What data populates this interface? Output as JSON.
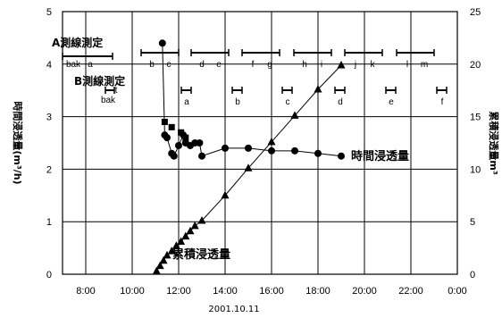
{
  "chart_data": {
    "type": "line",
    "xlabel": "2001.10.11",
    "ylabel_left": "時間浸透量(m³/h)",
    "ylabel_right": "累積浸透量m³",
    "x_tick_labels": [
      "8:00",
      "10:00",
      "12:00",
      "14:00",
      "16:00",
      "18:00",
      "20:00",
      "22:00",
      "0:00"
    ],
    "xlim_hours": [
      7,
      24
    ],
    "ylim_left": [
      0,
      5
    ],
    "ylim_right": [
      0,
      25
    ],
    "y_left_ticks": [
      "0",
      "1",
      "2",
      "3",
      "4",
      "5"
    ],
    "y_right_ticks": [
      "0",
      "5",
      "10",
      "15",
      "20",
      "25"
    ],
    "grid": true,
    "series": [
      {
        "name": "時間浸透量",
        "axis": "left",
        "marker": "circle",
        "x": [
          11.3,
          11.4,
          11.5,
          11.7,
          11.8,
          12.0,
          12.2,
          12.3,
          12.5,
          12.7,
          12.9,
          13.0,
          14.0,
          15.0,
          16.0,
          17.0,
          18.0,
          19.0
        ],
        "y": [
          4.4,
          2.65,
          2.6,
          2.3,
          2.25,
          2.45,
          2.65,
          2.5,
          2.45,
          2.5,
          2.5,
          2.25,
          2.4,
          2.4,
          2.35,
          2.35,
          2.3,
          2.25
        ]
      },
      {
        "name": "時間浸透量 (B)",
        "axis": "left",
        "marker": "square",
        "x": [
          11.4,
          11.7,
          12.1,
          12.3
        ],
        "y": [
          2.9,
          2.8,
          2.7,
          2.6
        ]
      },
      {
        "name": "累積浸透量",
        "axis": "right",
        "marker": "triangle",
        "x": [
          11.05,
          11.2,
          11.35,
          11.5,
          11.7,
          11.9,
          12.1,
          12.3,
          12.5,
          12.7,
          13.0,
          14.0,
          15.0,
          16.0,
          17.0,
          18.0,
          19.0
        ],
        "y": [
          0.3,
          0.8,
          1.3,
          1.8,
          2.2,
          2.7,
          3.1,
          3.6,
          4.1,
          4.6,
          5.1,
          7.5,
          10.1,
          12.6,
          15.1,
          17.6,
          19.9
        ]
      }
    ],
    "annotations": [
      {
        "text": "時間浸透量",
        "x": 19.6,
        "y_left": 2.25
      },
      {
        "text": "累積浸透量",
        "x": 13.3,
        "y_left": 0.45
      }
    ],
    "segments": {
      "A": {
        "label": "A測線測定",
        "pre_labels": [
          "bak",
          "a"
        ],
        "labels": [
          "b",
          "c",
          "d",
          "e",
          "f",
          "g",
          "h",
          "i",
          "j",
          "k",
          "l",
          "m"
        ]
      },
      "B": {
        "label": "B測線測定",
        "pre_labels": [
          "t",
          "bak"
        ],
        "labels": [
          "a",
          "b",
          "c",
          "d",
          "e",
          "f"
        ]
      }
    }
  }
}
